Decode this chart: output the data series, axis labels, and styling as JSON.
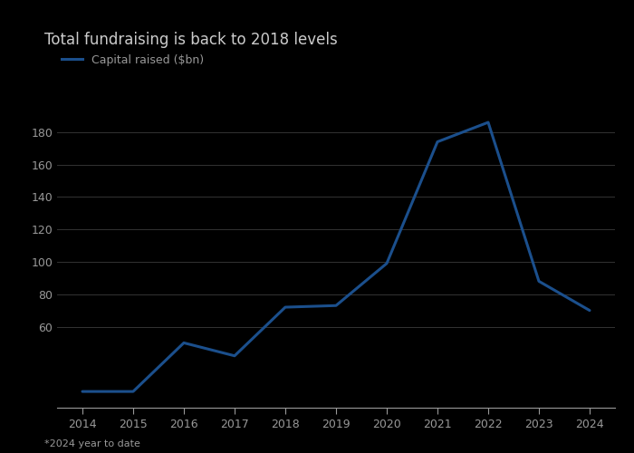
{
  "years": [
    2014,
    2015,
    2016,
    2017,
    2018,
    2019,
    2020,
    2021,
    2022,
    2023,
    2024
  ],
  "values": [
    20,
    20,
    50,
    42,
    72,
    73,
    99,
    174,
    186,
    88,
    70
  ],
  "title": "Total fundraising is back to 2018 levels",
  "legend_label": "Capital raised ($bn)",
  "footnote": "*2024 year to date",
  "line_color": "#1b4f8c",
  "background_color": "#000000",
  "plot_bg_color": "#000000",
  "grid_color": "#333333",
  "text_color": "#999999",
  "title_color": "#cccccc",
  "ylim": [
    10,
    200
  ],
  "yticks": [
    60,
    80,
    100,
    120,
    140,
    160,
    180
  ],
  "xticks": [
    2014,
    2015,
    2016,
    2017,
    2018,
    2019,
    2020,
    2021,
    2022,
    2023,
    2024
  ],
  "title_fontsize": 12,
  "legend_fontsize": 9,
  "tick_fontsize": 9,
  "footnote_fontsize": 8,
  "line_width": 2.2
}
